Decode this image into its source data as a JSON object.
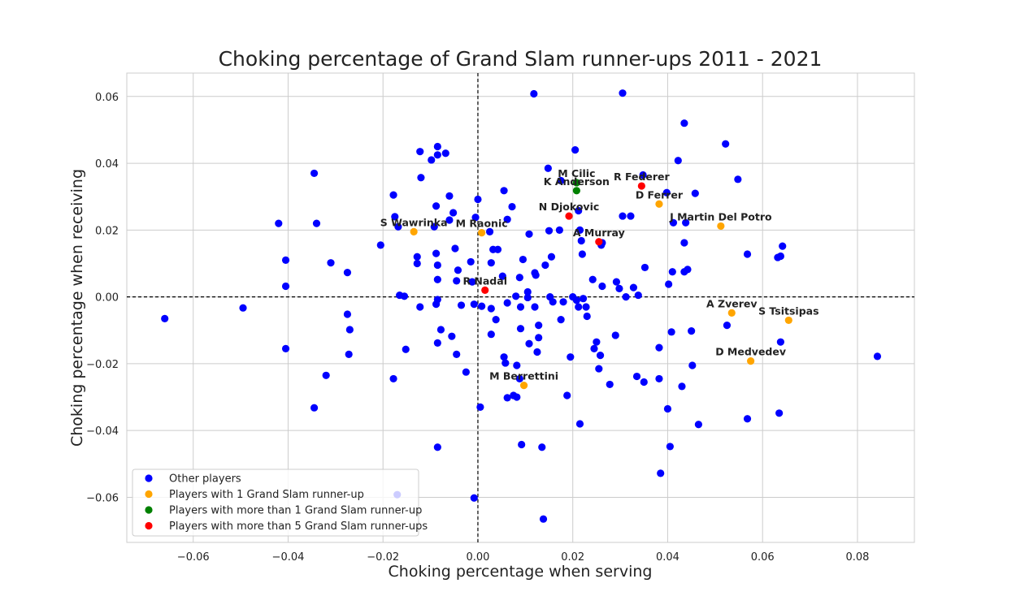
{
  "chart_data": {
    "type": "scatter",
    "title": "Choking percentage of Grand Slam runner-ups 2011 - 2021",
    "xlabel": "Choking percentage when serving",
    "ylabel": "Choking percentage when receiving",
    "xlim": [
      -0.074,
      0.092
    ],
    "ylim": [
      -0.0735,
      0.067
    ],
    "xticks": [
      -0.06,
      -0.04,
      -0.02,
      0.0,
      0.02,
      0.04,
      0.06,
      0.08
    ],
    "yticks": [
      -0.06,
      -0.04,
      -0.02,
      0.0,
      0.02,
      0.04,
      0.06
    ],
    "xtick_labels": [
      "−0.06",
      "−0.04",
      "−0.02",
      "0.00",
      "0.02",
      "0.04",
      "0.06",
      "0.08"
    ],
    "ytick_labels": [
      "−0.06",
      "−0.04",
      "−0.02",
      "0.00",
      "0.02",
      "0.04",
      "0.06"
    ],
    "grid": true,
    "reference_lines": {
      "x": 0,
      "y": 0,
      "style": "dashed"
    },
    "legend_position": "lower-left",
    "series": [
      {
        "name": "Other players",
        "color": "#0000ff",
        "points": [
          [
            -0.066,
            -0.0065
          ],
          [
            -0.0495,
            -0.0033
          ],
          [
            -0.042,
            0.022
          ],
          [
            -0.0405,
            0.011
          ],
          [
            -0.0405,
            0.0032
          ],
          [
            -0.0405,
            -0.0155
          ],
          [
            -0.0345,
            0.037
          ],
          [
            -0.034,
            0.022
          ],
          [
            -0.0345,
            -0.0332
          ],
          [
            -0.031,
            0.0102
          ],
          [
            -0.032,
            -0.0235
          ],
          [
            -0.0275,
            0.0073
          ],
          [
            -0.0275,
            -0.0052
          ],
          [
            -0.027,
            -0.0098
          ],
          [
            -0.0272,
            -0.0172
          ],
          [
            -0.0205,
            0.0155
          ],
          [
            -0.0178,
            0.0305
          ],
          [
            -0.0175,
            0.024
          ],
          [
            -0.0168,
            0.021
          ],
          [
            -0.0165,
            0.0005
          ],
          [
            -0.0155,
            0.0002
          ],
          [
            -0.0152,
            -0.0157
          ],
          [
            -0.0178,
            -0.0245
          ],
          [
            -0.0128,
            0.012
          ],
          [
            -0.0128,
            0.01
          ],
          [
            -0.0122,
            0.0435
          ],
          [
            -0.012,
            0.0357
          ],
          [
            -0.0122,
            -0.003
          ],
          [
            -0.0098,
            0.041
          ],
          [
            -0.0092,
            0.021
          ],
          [
            -0.0085,
            0.045
          ],
          [
            -0.0085,
            0.0425
          ],
          [
            -0.0088,
            0.0272
          ],
          [
            -0.0088,
            0.013
          ],
          [
            -0.0085,
            0.0095
          ],
          [
            -0.0085,
            0.0052
          ],
          [
            -0.0085,
            -0.0008
          ],
          [
            -0.0088,
            -0.0022
          ],
          [
            -0.0078,
            -0.0098
          ],
          [
            -0.0085,
            -0.0138
          ],
          [
            -0.0068,
            0.043
          ],
          [
            -0.006,
            0.0302
          ],
          [
            -0.006,
            0.023
          ],
          [
            -0.0052,
            0.0252
          ],
          [
            -0.0048,
            0.0145
          ],
          [
            -0.0045,
            0.0048
          ],
          [
            -0.0042,
            0.008
          ],
          [
            -0.0035,
            -0.0025
          ],
          [
            -0.0055,
            -0.0118
          ],
          [
            -0.0045,
            -0.0172
          ],
          [
            -0.0025,
            -0.0225
          ],
          [
            -0.0085,
            -0.045
          ],
          [
            -0.0015,
            0.0105
          ],
          [
            -0.0012,
            0.0045
          ],
          [
            -0.0005,
            0.0238
          ],
          [
            0.0,
            0.0292
          ],
          [
            -0.0008,
            -0.0022
          ],
          [
            0.0008,
            -0.0028
          ],
          [
            0.0025,
            0.0195
          ],
          [
            0.0028,
            0.0102
          ],
          [
            0.0032,
            0.0142
          ],
          [
            0.0042,
            0.0142
          ],
          [
            0.0028,
            -0.0035
          ],
          [
            0.0028,
            -0.0112
          ],
          [
            0.0038,
            -0.0068
          ],
          [
            0.0005,
            -0.033
          ],
          [
            -0.0008,
            -0.0602
          ],
          [
            0.0055,
            0.0318
          ],
          [
            0.0062,
            0.0232
          ],
          [
            0.0072,
            0.027
          ],
          [
            0.0052,
            0.0062
          ],
          [
            0.0062,
            -0.0018
          ],
          [
            0.0055,
            -0.018
          ],
          [
            0.0058,
            -0.0198
          ],
          [
            0.0075,
            -0.0295
          ],
          [
            0.0062,
            -0.0302
          ],
          [
            0.0082,
            -0.03
          ],
          [
            0.0082,
            -0.0205
          ],
          [
            0.0088,
            -0.0245
          ],
          [
            0.0088,
            0.0058
          ],
          [
            0.0095,
            0.0112
          ],
          [
            0.008,
            0.0002
          ],
          [
            0.009,
            -0.003
          ],
          [
            0.009,
            -0.0095
          ],
          [
            0.0092,
            -0.0442
          ],
          [
            0.0105,
            0.0015
          ],
          [
            0.0105,
            -0.0002
          ],
          [
            0.0108,
            0.0188
          ],
          [
            0.0108,
            -0.014
          ],
          [
            0.0118,
            0.0608
          ],
          [
            0.0122,
            0.0065
          ],
          [
            0.012,
            0.0072
          ],
          [
            0.012,
            -0.003
          ],
          [
            0.0125,
            -0.0165
          ],
          [
            0.0128,
            -0.0085
          ],
          [
            0.0128,
            -0.0122
          ],
          [
            0.0135,
            -0.045
          ],
          [
            0.0138,
            -0.0665
          ],
          [
            0.0148,
            0.0385
          ],
          [
            0.015,
            0.0198
          ],
          [
            0.0142,
            0.0095
          ],
          [
            0.0155,
            0.012
          ],
          [
            0.0152,
            0.0
          ],
          [
            0.0158,
            -0.0015
          ],
          [
            0.0172,
            0.02
          ],
          [
            0.0175,
            0.0348
          ],
          [
            0.0175,
            -0.0068
          ],
          [
            0.018,
            -0.0015
          ],
          [
            0.0188,
            -0.0295
          ],
          [
            0.0195,
            -0.018
          ],
          [
            0.02,
            0.0
          ],
          [
            0.0205,
            0.044
          ],
          [
            0.0208,
            -0.001
          ],
          [
            0.0212,
            -0.003
          ],
          [
            0.0212,
            0.0258
          ],
          [
            0.0215,
            -0.038
          ],
          [
            0.0215,
            0.02
          ],
          [
            0.0218,
            0.0168
          ],
          [
            0.022,
            0.0128
          ],
          [
            0.0222,
            -0.0005
          ],
          [
            0.0228,
            -0.003
          ],
          [
            0.023,
            -0.0058
          ],
          [
            0.0242,
            0.0052
          ],
          [
            0.0245,
            -0.0155
          ],
          [
            0.025,
            -0.0135
          ],
          [
            0.0258,
            -0.0175
          ],
          [
            0.0255,
            -0.0215
          ],
          [
            0.026,
            0.0155
          ],
          [
            0.0262,
            0.0032
          ],
          [
            0.0262,
            0.0162
          ],
          [
            0.0278,
            -0.0262
          ],
          [
            0.0292,
            0.0045
          ],
          [
            0.029,
            -0.0115
          ],
          [
            0.0298,
            0.0025
          ],
          [
            0.0305,
            0.061
          ],
          [
            0.0305,
            0.0242
          ],
          [
            0.0312,
            0.0
          ],
          [
            0.0322,
            0.0242
          ],
          [
            0.0328,
            0.0028
          ],
          [
            0.0335,
            -0.0238
          ],
          [
            0.0338,
            0.0005
          ],
          [
            0.0348,
            0.0365
          ],
          [
            0.035,
            -0.0255
          ],
          [
            0.0352,
            0.0088
          ],
          [
            0.0382,
            -0.0152
          ],
          [
            0.0382,
            -0.0245
          ],
          [
            0.0385,
            -0.0528
          ],
          [
            0.0398,
            0.0312
          ],
          [
            0.0402,
            0.0038
          ],
          [
            0.04,
            -0.0335
          ],
          [
            0.0405,
            -0.0448
          ],
          [
            0.0408,
            -0.0105
          ],
          [
            0.041,
            0.0075
          ],
          [
            0.0412,
            0.0222
          ],
          [
            0.0422,
            0.0408
          ],
          [
            0.043,
            -0.0268
          ],
          [
            0.0435,
            0.052
          ],
          [
            0.0435,
            0.0162
          ],
          [
            0.0435,
            0.0075
          ],
          [
            0.0438,
            0.0222
          ],
          [
            0.0442,
            0.0082
          ],
          [
            0.045,
            -0.0102
          ],
          [
            0.0452,
            -0.0205
          ],
          [
            0.0458,
            0.031
          ],
          [
            0.0465,
            -0.0382
          ],
          [
            0.0522,
            0.0458
          ],
          [
            0.0525,
            -0.0085
          ],
          [
            0.0548,
            0.0352
          ],
          [
            0.0568,
            0.0128
          ],
          [
            0.0568,
            -0.0365
          ],
          [
            0.0632,
            0.0118
          ],
          [
            0.0635,
            -0.0348
          ],
          [
            0.0638,
            0.0122
          ],
          [
            0.0642,
            0.0152
          ],
          [
            0.0638,
            -0.0135
          ],
          [
            0.0842,
            -0.0178
          ],
          [
            -0.017,
            -0.0592
          ]
        ]
      },
      {
        "name": "Players with 1 Grand Slam runner-up",
        "color": "#ffa500",
        "points": [
          [
            -0.0135,
            0.0195
          ],
          [
            0.0008,
            0.0192
          ],
          [
            0.0097,
            -0.0265
          ],
          [
            0.0382,
            0.0278
          ],
          [
            0.0512,
            0.0212
          ],
          [
            0.0535,
            -0.0048
          ],
          [
            0.0575,
            -0.0192
          ],
          [
            0.0655,
            -0.007
          ]
        ]
      },
      {
        "name": "Players with more than 1 Grand Slam runner-up",
        "color": "#008000",
        "points": [
          [
            0.0208,
            0.0342
          ],
          [
            0.0208,
            0.0318
          ]
        ]
      },
      {
        "name": "Players with more than 5 Grand Slam runner-ups",
        "color": "#ff0000",
        "points": [
          [
            0.0015,
            0.002
          ],
          [
            0.0192,
            0.0242
          ],
          [
            0.0255,
            0.0165
          ],
          [
            0.0345,
            0.0332
          ]
        ]
      }
    ],
    "annotations": [
      {
        "text": "S Wawrinka",
        "x": -0.0135,
        "y": 0.0195
      },
      {
        "text": "M Raonic",
        "x": 0.0008,
        "y": 0.0192
      },
      {
        "text": "R Nadal",
        "x": 0.0015,
        "y": 0.002
      },
      {
        "text": "M Berrettini",
        "x": 0.0097,
        "y": -0.0265
      },
      {
        "text": "N Djokovic",
        "x": 0.0192,
        "y": 0.0242
      },
      {
        "text": "M Cilic",
        "x": 0.0208,
        "y": 0.0342
      },
      {
        "text": "K Anderson",
        "x": 0.0208,
        "y": 0.0318
      },
      {
        "text": "A Murray",
        "x": 0.0255,
        "y": 0.0165
      },
      {
        "text": "R Federer",
        "x": 0.0345,
        "y": 0.0332
      },
      {
        "text": "D Ferrer",
        "x": 0.0382,
        "y": 0.0278
      },
      {
        "text": "J Martin Del Potro",
        "x": 0.0512,
        "y": 0.0212
      },
      {
        "text": "A Zverev",
        "x": 0.0535,
        "y": -0.0048
      },
      {
        "text": "S Tsitsipas",
        "x": 0.0655,
        "y": -0.007
      },
      {
        "text": "D Medvedev",
        "x": 0.0575,
        "y": -0.0192
      }
    ]
  }
}
